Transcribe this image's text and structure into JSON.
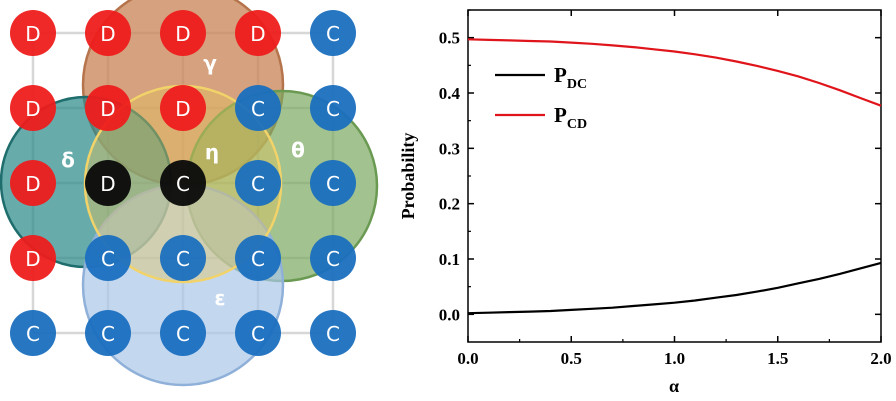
{
  "lattice": {
    "rows": [
      [
        "D",
        "D",
        "D",
        "D",
        "C"
      ],
      [
        "D",
        "D",
        "D",
        "C",
        "C"
      ],
      [
        "D",
        "D",
        "C",
        "C",
        "C"
      ],
      [
        "D",
        "C",
        "C",
        "C",
        "C"
      ],
      [
        "C",
        "C",
        "C",
        "C",
        "C"
      ]
    ],
    "highlighted": [
      [
        2,
        1
      ],
      [
        2,
        2
      ]
    ],
    "colors": {
      "D": "#ee1c1c",
      "C": "#1a6fbf",
      "highlight": "#0a0a0a",
      "grid": "#d7d7d7",
      "gamma": "#c9865a",
      "delta": "#2e8b8b",
      "theta": "#7aa860",
      "epsilon": "#a9c6e8",
      "eta": "#e3c45a"
    },
    "region_labels": {
      "gamma": "γ",
      "delta": "δ",
      "theta": "θ",
      "eta": "η",
      "epsilon": "ε"
    }
  },
  "chart_data": {
    "type": "line",
    "xlabel": "α",
    "ylabel": "Probability",
    "xlim": [
      0.0,
      2.0
    ],
    "ylim": [
      -0.05,
      0.55
    ],
    "xticks": [
      "0.0",
      "0.5",
      "1.0",
      "1.5",
      "2.0"
    ],
    "yticks": [
      "0.0",
      "0.1",
      "0.2",
      "0.3",
      "0.4",
      "0.5"
    ],
    "legend_position": "upper-left",
    "series": [
      {
        "name": "P",
        "subscript": "DC",
        "color": "#000000",
        "x": [
          0.0,
          0.1,
          0.2,
          0.3,
          0.4,
          0.5,
          0.6,
          0.7,
          0.8,
          0.9,
          1.0,
          1.1,
          1.2,
          1.3,
          1.4,
          1.5,
          1.6,
          1.7,
          1.8,
          1.9,
          2.0
        ],
        "y": [
          0.002,
          0.003,
          0.004,
          0.005,
          0.006,
          0.008,
          0.01,
          0.012,
          0.015,
          0.018,
          0.021,
          0.025,
          0.03,
          0.035,
          0.041,
          0.048,
          0.056,
          0.064,
          0.073,
          0.083,
          0.093
        ]
      },
      {
        "name": "P",
        "subscript": "CD",
        "color": "#e0151b",
        "x": [
          0.0,
          0.1,
          0.2,
          0.3,
          0.4,
          0.5,
          0.6,
          0.7,
          0.8,
          0.9,
          1.0,
          1.1,
          1.2,
          1.3,
          1.4,
          1.5,
          1.6,
          1.7,
          1.8,
          1.9,
          2.0
        ],
        "y": [
          0.497,
          0.496,
          0.495,
          0.494,
          0.493,
          0.491,
          0.489,
          0.486,
          0.483,
          0.479,
          0.475,
          0.47,
          0.464,
          0.457,
          0.449,
          0.44,
          0.43,
          0.418,
          0.405,
          0.391,
          0.377
        ]
      }
    ]
  }
}
